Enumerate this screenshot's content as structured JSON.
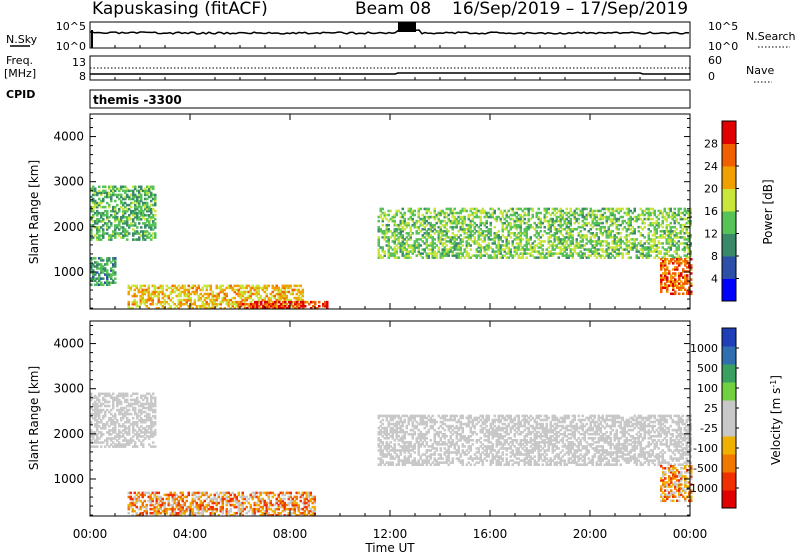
{
  "header": {
    "station": "Kapuskasing (fitACF)",
    "beam": "Beam 08",
    "date_range": "16/Sep/2019 – 17/Sep/2019"
  },
  "noise_panel": {
    "left_label": "N.Sky",
    "left_ticks": [
      "10^5",
      "10^0"
    ],
    "right_label": "N.Search",
    "right_ticks": [
      "10^5",
      "10^0"
    ]
  },
  "freq_panel": {
    "left_label_1": "Freq.",
    "left_label_2": "[MHz]",
    "left_ticks": [
      "13",
      "8"
    ],
    "right_label": "Nave",
    "right_ticks": [
      "60",
      "0"
    ]
  },
  "cpid": {
    "label": "CPID",
    "value": "themis -3300"
  },
  "time_axis": {
    "title": "Time UT",
    "ticks": [
      "00:00",
      "04:00",
      "08:00",
      "12:00",
      "16:00",
      "20:00",
      "00:00"
    ]
  },
  "colors": {
    "power_scale": [
      "#0000ff",
      "#2c4fa8",
      "#3a8a6a",
      "#57c257",
      "#c8e63c",
      "#f0a000",
      "#f06000",
      "#e00000"
    ],
    "velocity_scale": [
      "#1f3fb8",
      "#2f6fb0",
      "#3aa060",
      "#70d040",
      "#c8c8c8",
      "#c8c8c8",
      "#f0b000",
      "#f07800",
      "#f03000",
      "#e00000"
    ],
    "ground_scatter": "#c8c8c8"
  },
  "chart_data": [
    {
      "type": "heatmap",
      "title": "",
      "xlabel": "Time UT",
      "ylabel": "Slant Range [km]",
      "y_ticks": [
        "1000",
        "2000",
        "3000",
        "4000"
      ],
      "ylim": [
        180,
        4500
      ],
      "colorbar": {
        "label": "Power [dB]",
        "ticks": [
          "4",
          "8",
          "12",
          "16",
          "20",
          "24",
          "28"
        ],
        "range": [
          0,
          30
        ]
      },
      "features": [
        {
          "t_start": 0.0,
          "t_end": 2.6,
          "range_start": 1700,
          "range_end": 2900,
          "level": 12
        },
        {
          "t_start": 0.0,
          "t_end": 1.0,
          "range_start": 700,
          "range_end": 1300,
          "level": 10
        },
        {
          "t_start": 1.5,
          "t_end": 8.5,
          "range_start": 180,
          "range_end": 700,
          "level": 20
        },
        {
          "t_start": 6.0,
          "t_end": 9.5,
          "range_start": 180,
          "range_end": 350,
          "level": 28
        },
        {
          "t_start": 11.5,
          "t_end": 24.0,
          "range_start": 1300,
          "range_end": 2400,
          "level": 14
        },
        {
          "t_start": 22.8,
          "t_end": 24.0,
          "range_start": 500,
          "range_end": 1300,
          "level": 26
        }
      ]
    },
    {
      "type": "heatmap",
      "title": "",
      "xlabel": "Time UT",
      "ylabel": "Slant Range [km]",
      "y_ticks": [
        "1000",
        "2000",
        "3000",
        "4000"
      ],
      "ylim": [
        180,
        4500
      ],
      "colorbar": {
        "label": "Velocity [m s-1]",
        "ticks": [
          "1000",
          "500",
          "100",
          "25",
          "-25",
          "-100",
          "-500",
          "-1000"
        ],
        "range": [
          -1000,
          1000
        ]
      },
      "features": [
        {
          "t_start": 0.0,
          "t_end": 2.6,
          "range_start": 1700,
          "range_end": 2900,
          "velocity": 0
        },
        {
          "t_start": 1.5,
          "t_end": 9.0,
          "range_start": 180,
          "range_end": 700,
          "velocity": -150
        },
        {
          "t_start": 11.5,
          "t_end": 24.0,
          "range_start": 1300,
          "range_end": 2400,
          "velocity": 0
        },
        {
          "t_start": 22.8,
          "t_end": 24.0,
          "range_start": 500,
          "range_end": 1300,
          "velocity": -400
        }
      ]
    }
  ]
}
